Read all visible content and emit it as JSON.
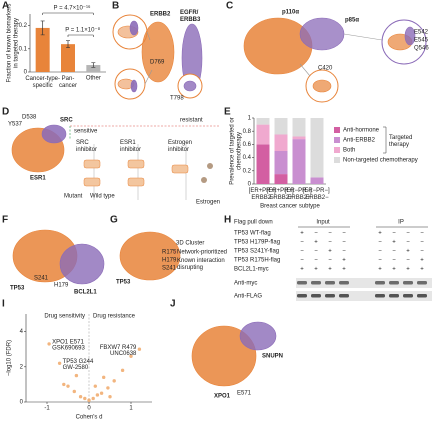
{
  "panel_letters": [
    "A",
    "B",
    "C",
    "D",
    "E",
    "F",
    "G",
    "H",
    "I",
    "J"
  ],
  "panel_b": {
    "labels": [
      "ERBB2",
      "EGFR/ERBB3",
      "D769",
      "T798"
    ]
  },
  "panel_c": {
    "labels": [
      "p110α",
      "p85α",
      "E542",
      "E545",
      "Q546",
      "C420"
    ]
  },
  "panel_d": {
    "labels": [
      "Y537",
      "D538",
      "SRC",
      "ESR1",
      "sensitive",
      "resistant",
      "SRC inhibitor",
      "ESR1 inhibitor",
      "Estrogen inhibitor",
      "Mutant",
      "Wild type",
      "Estrogen"
    ]
  },
  "panel_f": {
    "labels": [
      "TP53",
      "S241",
      "H179",
      "BCL2L1"
    ]
  },
  "panel_g": {
    "labels": [
      "TP53",
      "R175",
      "H179",
      "S241",
      "3D Cluster",
      "Network-prioritized",
      "Known interaction disrupting"
    ]
  },
  "panel_h": {
    "title": "Flag pull down",
    "groups": [
      "Input",
      "IP"
    ],
    "rows": [
      {
        "label": "TP53 WT-flag",
        "input": [
          "+",
          "−",
          "−",
          "−"
        ],
        "ip": [
          "+",
          "−",
          "−",
          "−"
        ]
      },
      {
        "label": "TP53 H179P-flag",
        "input": [
          "−",
          "+",
          "−",
          "−"
        ],
        "ip": [
          "−",
          "+",
          "−",
          "−"
        ]
      },
      {
        "label": "TP53 S241Y-flag",
        "input": [
          "−",
          "−",
          "+",
          "−"
        ],
        "ip": [
          "−",
          "−",
          "+",
          "−"
        ]
      },
      {
        "label": "TP53 R175H-flag",
        "input": [
          "−",
          "−",
          "−",
          "+"
        ],
        "ip": [
          "−",
          "−",
          "−",
          "+"
        ]
      },
      {
        "label": "BCL2L1-myc",
        "input": [
          "+",
          "+",
          "+",
          "+"
        ],
        "ip": [
          "+",
          "+",
          "+",
          "+"
        ]
      }
    ],
    "blots": [
      "Anti-myc",
      "Anti-FLAG"
    ]
  },
  "panel_j": {
    "labels": [
      "SNUPN",
      "XPO1",
      "E571"
    ]
  },
  "chart_data": [
    {
      "type": "bar",
      "y_label": [
        "Fraction of known biomarkers",
        "in targeted therapy"
      ],
      "categories": [
        "Cancer-type-specific",
        "Pan-cancer",
        "Other"
      ],
      "values": [
        0.19,
        0.12,
        0.03
      ],
      "errors": [
        0.03,
        0.015,
        0.01
      ],
      "colors": [
        "#e8843a",
        "#e8843a",
        "#b5b5b5"
      ],
      "ylim": [
        0,
        0.25
      ],
      "yticks": [
        0,
        0.1,
        0.2
      ],
      "annotations": [
        "P = 4.7×10⁻¹⁶",
        "P = 1.1×10⁻⁸"
      ]
    },
    {
      "type": "stacked_bar",
      "y_label": [
        "Prevalence of targeted or",
        "chemotherapy"
      ],
      "x_label": "Breast cancer subtype",
      "categories": [
        "[ER+PR+] ERBB2−",
        "[ER+PR+] ERBB2+",
        "[ER−PR−] ERBB2+",
        "[ER−PR−] ERBB2−"
      ],
      "series": [
        {
          "name": "Anti-hormone",
          "color": "#d35fa2",
          "values": [
            0.6,
            0.15,
            0,
            0
          ]
        },
        {
          "name": "Anti-ERBB2",
          "color": "#c98fd0",
          "values": [
            0,
            0.35,
            0.68,
            0.1
          ]
        },
        {
          "name": "Both",
          "color": "#f0a9cf",
          "values": [
            0.3,
            0.25,
            0.04,
            0
          ]
        },
        {
          "name": "Non-targeted chemotherapy",
          "color": "#dcdcdc",
          "values": [
            0.1,
            0.25,
            0.28,
            0.9
          ]
        }
      ],
      "legend_group": "Targeted therapy",
      "ylim": [
        0,
        1
      ],
      "yticks": [
        0,
        0.2,
        0.4,
        0.6,
        0.8,
        1
      ]
    },
    {
      "type": "scatter",
      "x_label": "Cohen's d",
      "y_label": "−log10 (FDR)",
      "color": "#f0a868",
      "x": [
        -0.95,
        -0.7,
        -0.5,
        -0.35,
        -0.2,
        -0.1,
        0,
        0.1,
        0.2,
        0.3,
        0.45,
        0.6,
        0.8,
        1.0,
        1.2,
        -0.3,
        0.15,
        0.5,
        -0.6,
        0.35
      ],
      "y": [
        3.3,
        2.2,
        0.9,
        0.6,
        0.3,
        0.2,
        0.1,
        0.2,
        0.4,
        0.5,
        0.8,
        1.2,
        1.8,
        2.6,
        3.0,
        1.5,
        0.9,
        0.3,
        1.0,
        1.4
      ],
      "point_labels": [
        [
          "XPO1 E571",
          "GSK690693"
        ],
        [
          "TP53 G244",
          "GW-2580"
        ],
        null,
        null,
        null,
        null,
        null,
        null,
        null,
        null,
        null,
        null,
        null,
        null,
        [
          "FBXW7 R479",
          "UNC0638"
        ],
        null,
        null,
        null,
        null,
        null
      ],
      "annotations": [
        "Drug sensitivity",
        "Drug resistance"
      ],
      "xlim": [
        -1.5,
        1.5
      ],
      "xticks": [
        -1,
        0,
        1
      ],
      "ylim": [
        0,
        5
      ],
      "yticks": [
        0,
        2,
        4
      ]
    }
  ]
}
